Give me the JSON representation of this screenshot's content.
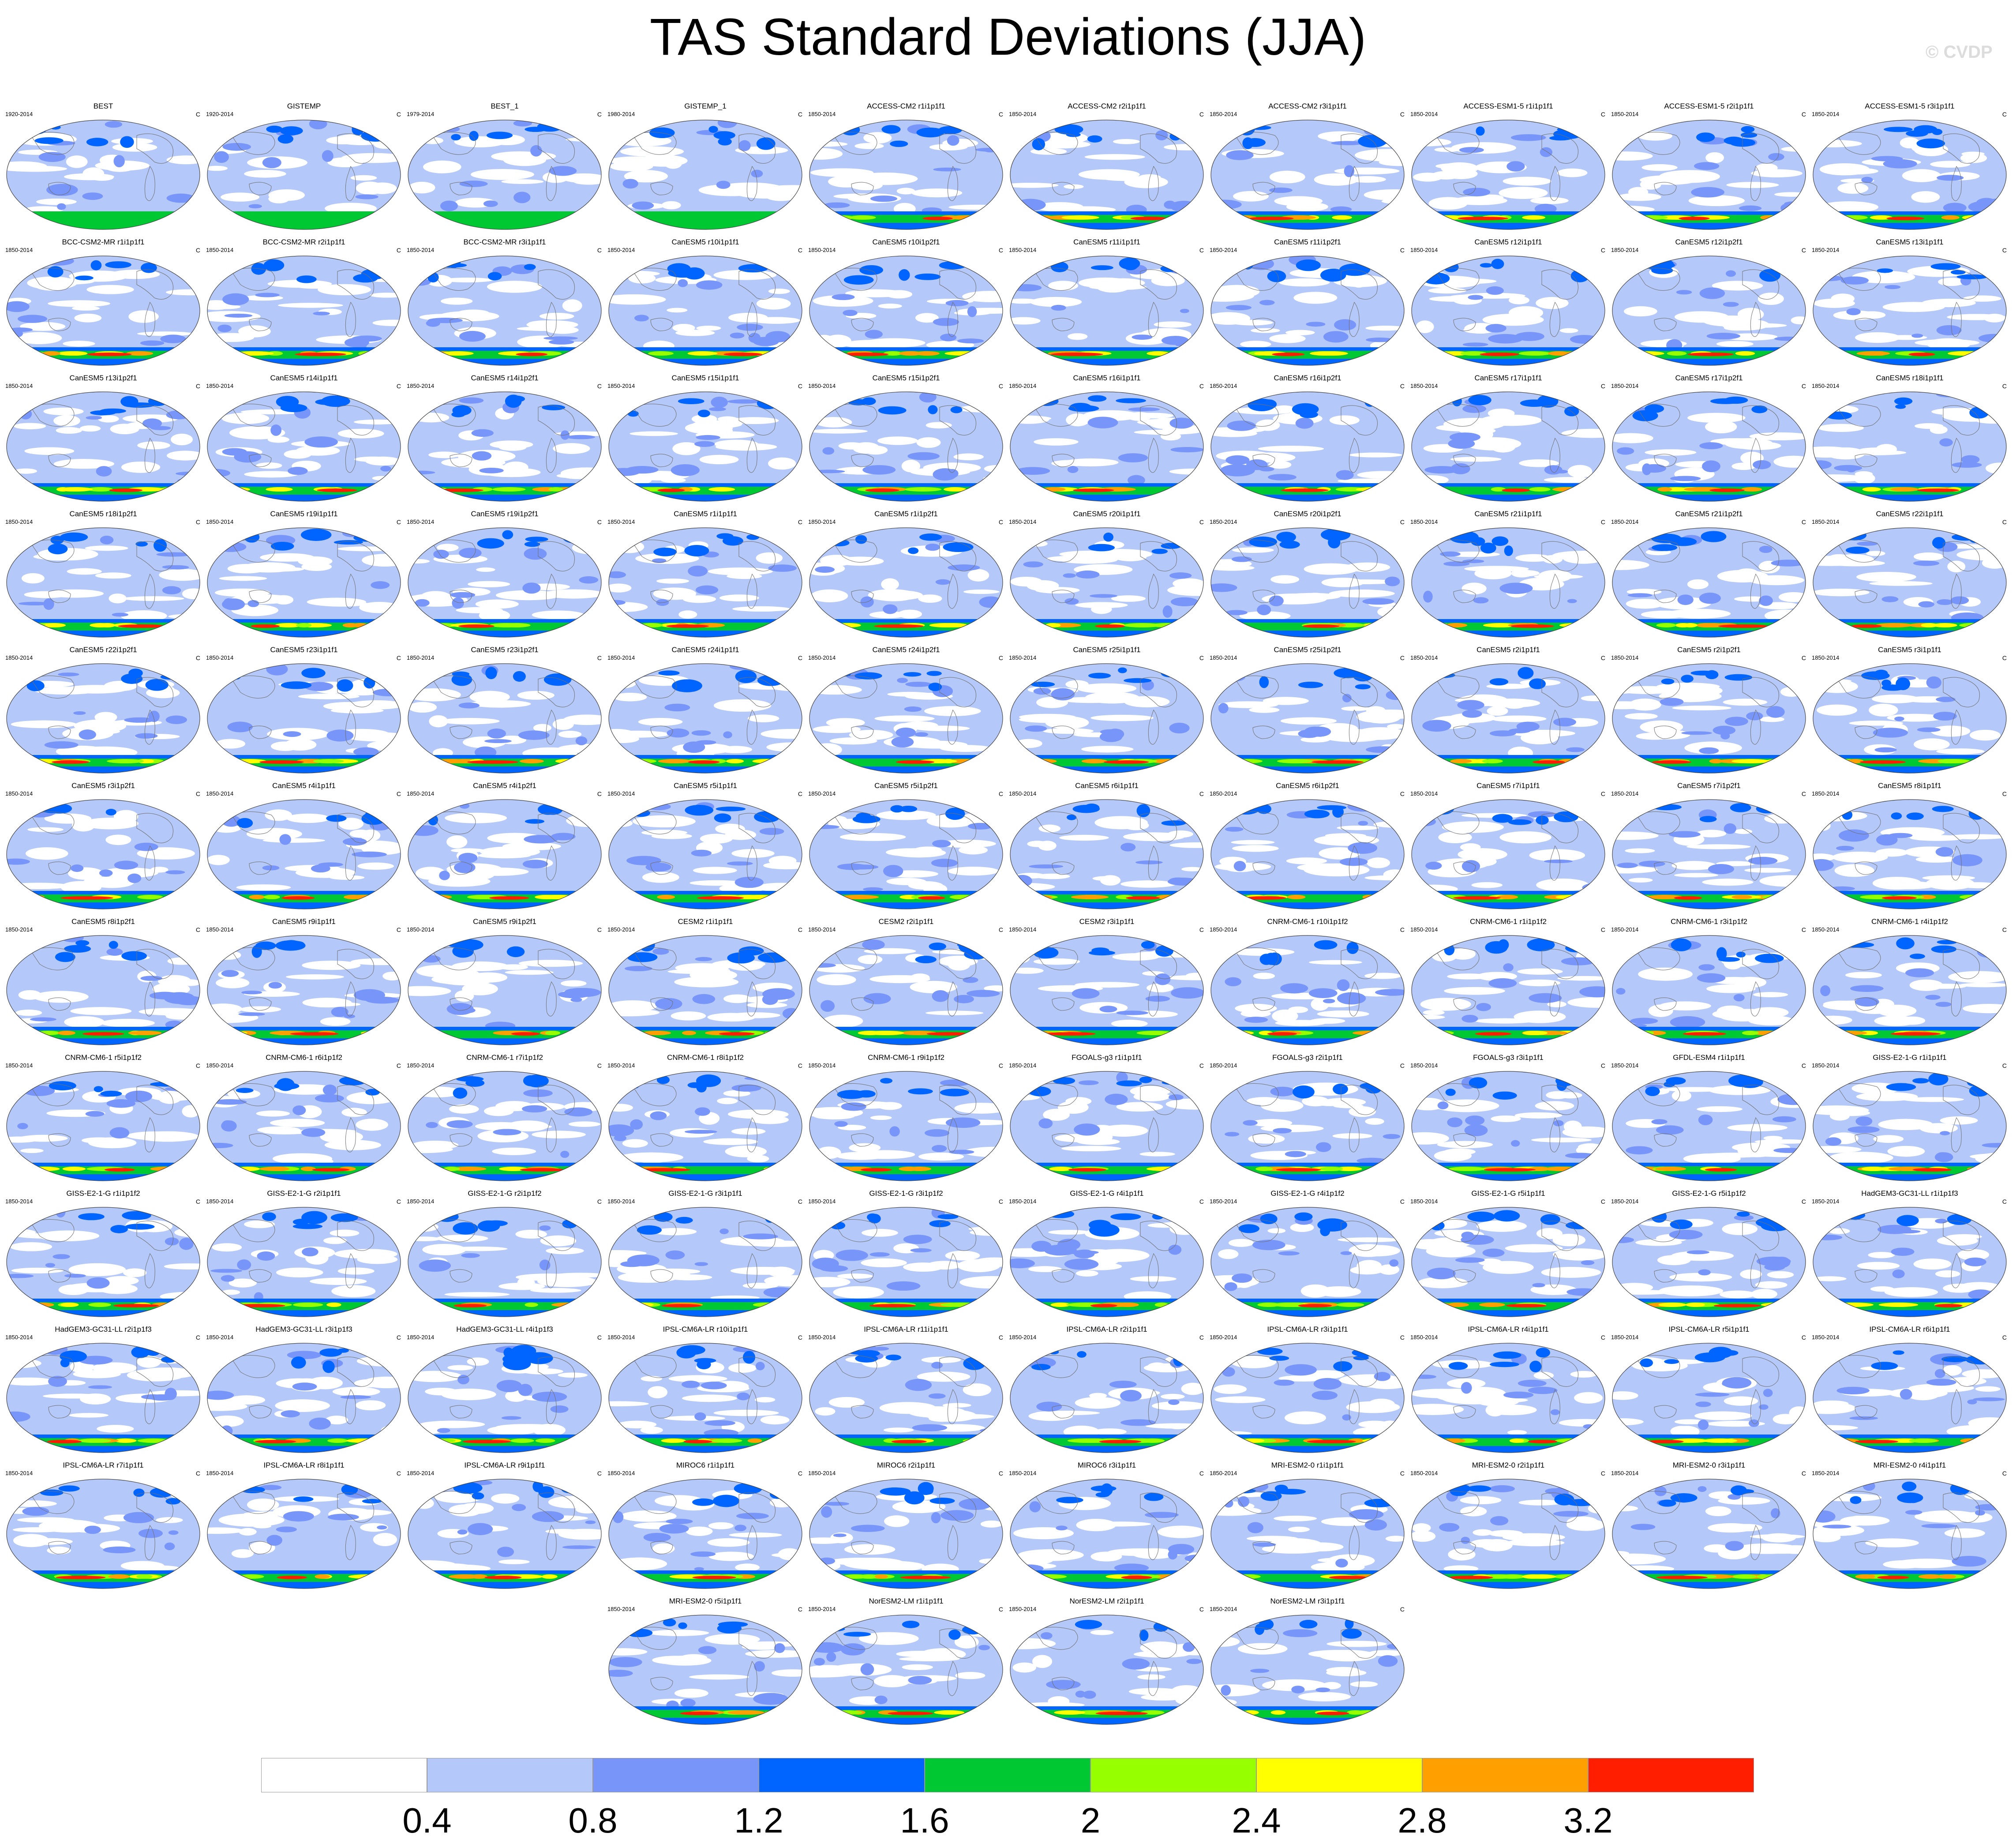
{
  "title": "TAS Standard Deviations (JJA)",
  "credit": "© CVDP",
  "units": "C",
  "panels": [
    {
      "name": "BEST",
      "years": "1920-2014",
      "row": 0,
      "col": 0
    },
    {
      "name": "GISTEMP",
      "years": "1920-2014",
      "row": 0,
      "col": 1
    },
    {
      "name": "BEST_1",
      "years": "1979-2014",
      "row": 0,
      "col": 2
    },
    {
      "name": "GISTEMP_1",
      "years": "1980-2014",
      "row": 0,
      "col": 3
    },
    {
      "name": "ACCESS-CM2 r1i1p1f1",
      "years": "1850-2014",
      "row": 0,
      "col": 4
    },
    {
      "name": "ACCESS-CM2 r2i1p1f1",
      "years": "1850-2014",
      "row": 0,
      "col": 5
    },
    {
      "name": "ACCESS-CM2 r3i1p1f1",
      "years": "1850-2014",
      "row": 0,
      "col": 6
    },
    {
      "name": "ACCESS-ESM1-5 r1i1p1f1",
      "years": "1850-2014",
      "row": 0,
      "col": 7
    },
    {
      "name": "ACCESS-ESM1-5 r2i1p1f1",
      "years": "1850-2014",
      "row": 0,
      "col": 8
    },
    {
      "name": "ACCESS-ESM1-5 r3i1p1f1",
      "years": "1850-2014",
      "row": 0,
      "col": 9
    },
    {
      "name": "BCC-CSM2-MR r1i1p1f1",
      "years": "1850-2014",
      "row": 1,
      "col": 0
    },
    {
      "name": "BCC-CSM2-MR r2i1p1f1",
      "years": "1850-2014",
      "row": 1,
      "col": 1
    },
    {
      "name": "BCC-CSM2-MR r3i1p1f1",
      "years": "1850-2014",
      "row": 1,
      "col": 2
    },
    {
      "name": "CanESM5 r10i1p1f1",
      "years": "1850-2014",
      "row": 1,
      "col": 3
    },
    {
      "name": "CanESM5 r10i1p2f1",
      "years": "1850-2014",
      "row": 1,
      "col": 4
    },
    {
      "name": "CanESM5 r11i1p1f1",
      "years": "1850-2014",
      "row": 1,
      "col": 5
    },
    {
      "name": "CanESM5 r11i1p2f1",
      "years": "1850-2014",
      "row": 1,
      "col": 6
    },
    {
      "name": "CanESM5 r12i1p1f1",
      "years": "1850-2014",
      "row": 1,
      "col": 7
    },
    {
      "name": "CanESM5 r12i1p2f1",
      "years": "1850-2014",
      "row": 1,
      "col": 8
    },
    {
      "name": "CanESM5 r13i1p1f1",
      "years": "1850-2014",
      "row": 1,
      "col": 9
    },
    {
      "name": "CanESM5 r13i1p2f1",
      "years": "1850-2014",
      "row": 2,
      "col": 0
    },
    {
      "name": "CanESM5 r14i1p1f1",
      "years": "1850-2014",
      "row": 2,
      "col": 1
    },
    {
      "name": "CanESM5 r14i1p2f1",
      "years": "1850-2014",
      "row": 2,
      "col": 2
    },
    {
      "name": "CanESM5 r15i1p1f1",
      "years": "1850-2014",
      "row": 2,
      "col": 3
    },
    {
      "name": "CanESM5 r15i1p2f1",
      "years": "1850-2014",
      "row": 2,
      "col": 4
    },
    {
      "name": "CanESM5 r16i1p1f1",
      "years": "1850-2014",
      "row": 2,
      "col": 5
    },
    {
      "name": "CanESM5 r16i1p2f1",
      "years": "1850-2014",
      "row": 2,
      "col": 6
    },
    {
      "name": "CanESM5 r17i1p1f1",
      "years": "1850-2014",
      "row": 2,
      "col": 7
    },
    {
      "name": "CanESM5 r17i1p2f1",
      "years": "1850-2014",
      "row": 2,
      "col": 8
    },
    {
      "name": "CanESM5 r18i1p1f1",
      "years": "1850-2014",
      "row": 2,
      "col": 9
    },
    {
      "name": "CanESM5 r18i1p2f1",
      "years": "1850-2014",
      "row": 3,
      "col": 0
    },
    {
      "name": "CanESM5 r19i1p1f1",
      "years": "1850-2014",
      "row": 3,
      "col": 1
    },
    {
      "name": "CanESM5 r19i1p2f1",
      "years": "1850-2014",
      "row": 3,
      "col": 2
    },
    {
      "name": "CanESM5 r1i1p1f1",
      "years": "1850-2014",
      "row": 3,
      "col": 3
    },
    {
      "name": "CanESM5 r1i1p2f1",
      "years": "1850-2014",
      "row": 3,
      "col": 4
    },
    {
      "name": "CanESM5 r20i1p1f1",
      "years": "1850-2014",
      "row": 3,
      "col": 5
    },
    {
      "name": "CanESM5 r20i1p2f1",
      "years": "1850-2014",
      "row": 3,
      "col": 6
    },
    {
      "name": "CanESM5 r21i1p1f1",
      "years": "1850-2014",
      "row": 3,
      "col": 7
    },
    {
      "name": "CanESM5 r21i1p2f1",
      "years": "1850-2014",
      "row": 3,
      "col": 8
    },
    {
      "name": "CanESM5 r22i1p1f1",
      "years": "1850-2014",
      "row": 3,
      "col": 9
    },
    {
      "name": "CanESM5 r22i1p2f1",
      "years": "1850-2014",
      "row": 4,
      "col": 0
    },
    {
      "name": "CanESM5 r23i1p1f1",
      "years": "1850-2014",
      "row": 4,
      "col": 1
    },
    {
      "name": "CanESM5 r23i1p2f1",
      "years": "1850-2014",
      "row": 4,
      "col": 2
    },
    {
      "name": "CanESM5 r24i1p1f1",
      "years": "1850-2014",
      "row": 4,
      "col": 3
    },
    {
      "name": "CanESM5 r24i1p2f1",
      "years": "1850-2014",
      "row": 4,
      "col": 4
    },
    {
      "name": "CanESM5 r25i1p1f1",
      "years": "1850-2014",
      "row": 4,
      "col": 5
    },
    {
      "name": "CanESM5 r25i1p2f1",
      "years": "1850-2014",
      "row": 4,
      "col": 6
    },
    {
      "name": "CanESM5 r2i1p1f1",
      "years": "1850-2014",
      "row": 4,
      "col": 7
    },
    {
      "name": "CanESM5 r2i1p2f1",
      "years": "1850-2014",
      "row": 4,
      "col": 8
    },
    {
      "name": "CanESM5 r3i1p1f1",
      "years": "1850-2014",
      "row": 4,
      "col": 9
    },
    {
      "name": "CanESM5 r3i1p2f1",
      "years": "1850-2014",
      "row": 5,
      "col": 0
    },
    {
      "name": "CanESM5 r4i1p1f1",
      "years": "1850-2014",
      "row": 5,
      "col": 1
    },
    {
      "name": "CanESM5 r4i1p2f1",
      "years": "1850-2014",
      "row": 5,
      "col": 2
    },
    {
      "name": "CanESM5 r5i1p1f1",
      "years": "1850-2014",
      "row": 5,
      "col": 3
    },
    {
      "name": "CanESM5 r5i1p2f1",
      "years": "1850-2014",
      "row": 5,
      "col": 4
    },
    {
      "name": "CanESM5 r6i1p1f1",
      "years": "1850-2014",
      "row": 5,
      "col": 5
    },
    {
      "name": "CanESM5 r6i1p2f1",
      "years": "1850-2014",
      "row": 5,
      "col": 6
    },
    {
      "name": "CanESM5 r7i1p1f1",
      "years": "1850-2014",
      "row": 5,
      "col": 7
    },
    {
      "name": "CanESM5 r7i1p2f1",
      "years": "1850-2014",
      "row": 5,
      "col": 8
    },
    {
      "name": "CanESM5 r8i1p1f1",
      "years": "1850-2014",
      "row": 5,
      "col": 9
    },
    {
      "name": "CanESM5 r8i1p2f1",
      "years": "1850-2014",
      "row": 6,
      "col": 0
    },
    {
      "name": "CanESM5 r9i1p1f1",
      "years": "1850-2014",
      "row": 6,
      "col": 1
    },
    {
      "name": "CanESM5 r9i1p2f1",
      "years": "1850-2014",
      "row": 6,
      "col": 2
    },
    {
      "name": "CESM2 r1i1p1f1",
      "years": "1850-2014",
      "row": 6,
      "col": 3
    },
    {
      "name": "CESM2 r2i1p1f1",
      "years": "1850-2014",
      "row": 6,
      "col": 4
    },
    {
      "name": "CESM2 r3i1p1f1",
      "years": "1850-2014",
      "row": 6,
      "col": 5
    },
    {
      "name": "CNRM-CM6-1 r10i1p1f2",
      "years": "1850-2014",
      "row": 6,
      "col": 6
    },
    {
      "name": "CNRM-CM6-1 r1i1p1f2",
      "years": "1850-2014",
      "row": 6,
      "col": 7
    },
    {
      "name": "CNRM-CM6-1 r3i1p1f2",
      "years": "1850-2014",
      "row": 6,
      "col": 8
    },
    {
      "name": "CNRM-CM6-1 r4i1p1f2",
      "years": "1850-2014",
      "row": 6,
      "col": 9
    },
    {
      "name": "CNRM-CM6-1 r5i1p1f2",
      "years": "1850-2014",
      "row": 7,
      "col": 0
    },
    {
      "name": "CNRM-CM6-1 r6i1p1f2",
      "years": "1850-2014",
      "row": 7,
      "col": 1
    },
    {
      "name": "CNRM-CM6-1 r7i1p1f2",
      "years": "1850-2014",
      "row": 7,
      "col": 2
    },
    {
      "name": "CNRM-CM6-1 r8i1p1f2",
      "years": "1850-2014",
      "row": 7,
      "col": 3
    },
    {
      "name": "CNRM-CM6-1 r9i1p1f2",
      "years": "1850-2014",
      "row": 7,
      "col": 4
    },
    {
      "name": "FGOALS-g3 r1i1p1f1",
      "years": "1850-2014",
      "row": 7,
      "col": 5
    },
    {
      "name": "FGOALS-g3 r2i1p1f1",
      "years": "1850-2014",
      "row": 7,
      "col": 6
    },
    {
      "name": "FGOALS-g3 r3i1p1f1",
      "years": "1850-2014",
      "row": 7,
      "col": 7
    },
    {
      "name": "GFDL-ESM4 r1i1p1f1",
      "years": "1850-2014",
      "row": 7,
      "col": 8
    },
    {
      "name": "GISS-E2-1-G r1i1p1f1",
      "years": "1850-2014",
      "row": 7,
      "col": 9
    },
    {
      "name": "GISS-E2-1-G r1i1p1f2",
      "years": "1850-2014",
      "row": 8,
      "col": 0
    },
    {
      "name": "GISS-E2-1-G r2i1p1f1",
      "years": "1850-2014",
      "row": 8,
      "col": 1
    },
    {
      "name": "GISS-E2-1-G r2i1p1f2",
      "years": "1850-2014",
      "row": 8,
      "col": 2
    },
    {
      "name": "GISS-E2-1-G r3i1p1f1",
      "years": "1850-2014",
      "row": 8,
      "col": 3
    },
    {
      "name": "GISS-E2-1-G r3i1p1f2",
      "years": "1850-2014",
      "row": 8,
      "col": 4
    },
    {
      "name": "GISS-E2-1-G r4i1p1f1",
      "years": "1850-2014",
      "row": 8,
      "col": 5
    },
    {
      "name": "GISS-E2-1-G r4i1p1f2",
      "years": "1850-2014",
      "row": 8,
      "col": 6
    },
    {
      "name": "GISS-E2-1-G r5i1p1f1",
      "years": "1850-2014",
      "row": 8,
      "col": 7
    },
    {
      "name": "GISS-E2-1-G r5i1p1f2",
      "years": "1850-2014",
      "row": 8,
      "col": 8
    },
    {
      "name": "HadGEM3-GC31-LL r1i1p1f3",
      "years": "1850-2014",
      "row": 8,
      "col": 9
    },
    {
      "name": "HadGEM3-GC31-LL r2i1p1f3",
      "years": "1850-2014",
      "row": 9,
      "col": 0
    },
    {
      "name": "HadGEM3-GC31-LL r3i1p1f3",
      "years": "1850-2014",
      "row": 9,
      "col": 1
    },
    {
      "name": "HadGEM3-GC31-LL r4i1p1f3",
      "years": "1850-2014",
      "row": 9,
      "col": 2
    },
    {
      "name": "IPSL-CM6A-LR r10i1p1f1",
      "years": "1850-2014",
      "row": 9,
      "col": 3
    },
    {
      "name": "IPSL-CM6A-LR r11i1p1f1",
      "years": "1850-2014",
      "row": 9,
      "col": 4
    },
    {
      "name": "IPSL-CM6A-LR r2i1p1f1",
      "years": "1850-2014",
      "row": 9,
      "col": 5
    },
    {
      "name": "IPSL-CM6A-LR r3i1p1f1",
      "years": "1850-2014",
      "row": 9,
      "col": 6
    },
    {
      "name": "IPSL-CM6A-LR r4i1p1f1",
      "years": "1850-2014",
      "row": 9,
      "col": 7
    },
    {
      "name": "IPSL-CM6A-LR r5i1p1f1",
      "years": "1850-2014",
      "row": 9,
      "col": 8
    },
    {
      "name": "IPSL-CM6A-LR r6i1p1f1",
      "years": "1850-2014",
      "row": 9,
      "col": 9
    },
    {
      "name": "IPSL-CM6A-LR r7i1p1f1",
      "years": "1850-2014",
      "row": 10,
      "col": 0
    },
    {
      "name": "IPSL-CM6A-LR r8i1p1f1",
      "years": "1850-2014",
      "row": 10,
      "col": 1
    },
    {
      "name": "IPSL-CM6A-LR r9i1p1f1",
      "years": "1850-2014",
      "row": 10,
      "col": 2
    },
    {
      "name": "MIROC6 r1i1p1f1",
      "years": "1850-2014",
      "row": 10,
      "col": 3
    },
    {
      "name": "MIROC6 r2i1p1f1",
      "years": "1850-2014",
      "row": 10,
      "col": 4
    },
    {
      "name": "MIROC6 r3i1p1f1",
      "years": "1850-2014",
      "row": 10,
      "col": 5
    },
    {
      "name": "MRI-ESM2-0 r1i1p1f1",
      "years": "1850-2014",
      "row": 10,
      "col": 6
    },
    {
      "name": "MRI-ESM2-0 r2i1p1f1",
      "years": "1850-2014",
      "row": 10,
      "col": 7
    },
    {
      "name": "MRI-ESM2-0 r3i1p1f1",
      "years": "1850-2014",
      "row": 10,
      "col": 8
    },
    {
      "name": "MRI-ESM2-0 r4i1p1f1",
      "years": "1850-2014",
      "row": 10,
      "col": 9
    },
    {
      "name": "MRI-ESM2-0 r5i1p1f1",
      "years": "1850-2014",
      "row": 11,
      "col": 3
    },
    {
      "name": "NorESM2-LM r1i1p1f1",
      "years": "1850-2014",
      "row": 11,
      "col": 4
    },
    {
      "name": "NorESM2-LM r2i1p1f1",
      "years": "1850-2014",
      "row": 11,
      "col": 5
    },
    {
      "name": "NorESM2-LM r3i1p1f1",
      "years": "1850-2014",
      "row": 11,
      "col": 6
    }
  ],
  "colorbar": {
    "colors": [
      "#ffffff",
      "#b4c8fa",
      "#7896fa",
      "#0064ff",
      "#00c832",
      "#96ff00",
      "#ffff00",
      "#ffa000",
      "#ff1e00"
    ],
    "labels": [
      "0.4",
      "0.8",
      "1.2",
      "1.6",
      "2",
      "2.4",
      "2.8",
      "3.2"
    ]
  }
}
